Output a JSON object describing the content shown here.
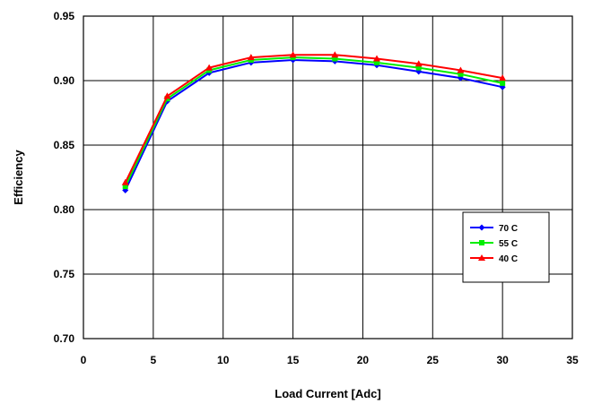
{
  "chart_data": {
    "type": "line",
    "title": "",
    "xlabel": "Load Current [Adc]",
    "ylabel": "Efficiency",
    "xlim": [
      0,
      35
    ],
    "ylim": [
      0.7,
      0.95
    ],
    "xticks": [
      "0",
      "5",
      "10",
      "15",
      "20",
      "25",
      "30",
      "35"
    ],
    "yticks": [
      "0.70",
      "0.75",
      "0.80",
      "0.85",
      "0.90",
      "0.95"
    ],
    "grid": true,
    "legend_position": "bottom-right",
    "x": [
      3,
      6,
      9,
      12,
      15,
      18,
      21,
      24,
      27,
      30
    ],
    "series": [
      {
        "name": "70 C",
        "color": "#0000ff",
        "marker": "diamond",
        "values": [
          0.815,
          0.884,
          0.906,
          0.914,
          0.916,
          0.915,
          0.912,
          0.907,
          0.902,
          0.895
        ]
      },
      {
        "name": "55 C",
        "color": "#00ee00",
        "marker": "square",
        "values": [
          0.818,
          0.886,
          0.908,
          0.916,
          0.918,
          0.917,
          0.914,
          0.91,
          0.905,
          0.898
        ]
      },
      {
        "name": "40 C",
        "color": "#ff0000",
        "marker": "triangle",
        "values": [
          0.821,
          0.888,
          0.91,
          0.918,
          0.92,
          0.92,
          0.917,
          0.913,
          0.908,
          0.902
        ]
      }
    ]
  }
}
